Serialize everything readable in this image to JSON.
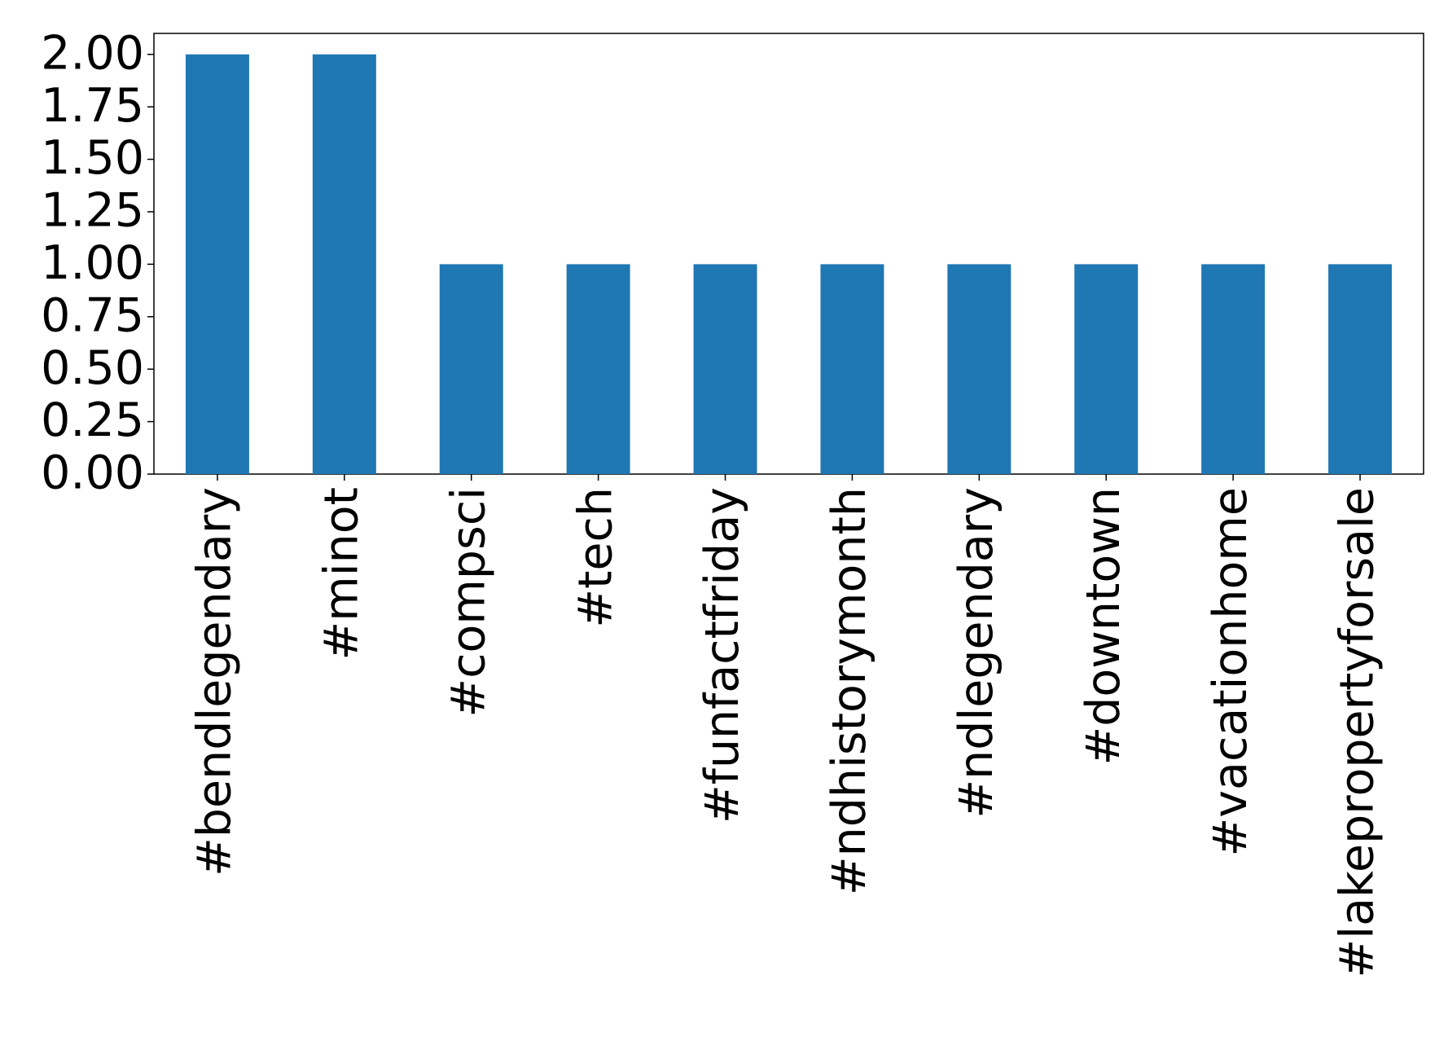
{
  "chart_data": {
    "type": "bar",
    "categories": [
      "#bendlegendary",
      "#minot",
      "#compsci",
      "#tech",
      "#funfactfriday",
      "#ndhistorymonth",
      "#ndlegendary",
      "#downtown",
      "#vacationhome",
      "#lakepropertyforsale"
    ],
    "values": [
      2,
      2,
      1,
      1,
      1,
      1,
      1,
      1,
      1,
      1
    ],
    "color": "#1f77b4",
    "ylim": [
      0,
      2.1
    ],
    "yticks": [
      {
        "value": 0,
        "label": "0.00"
      },
      {
        "value": 0.25,
        "label": "0.25"
      },
      {
        "value": 0.5,
        "label": "0.50"
      },
      {
        "value": 0.75,
        "label": "0.75"
      },
      {
        "value": 1,
        "label": "1.00"
      },
      {
        "value": 1.25,
        "label": "1.25"
      },
      {
        "value": 1.5,
        "label": "1.50"
      },
      {
        "value": 1.75,
        "label": "1.75"
      },
      {
        "value": 2,
        "label": "2.00"
      }
    ],
    "grid": false
  }
}
